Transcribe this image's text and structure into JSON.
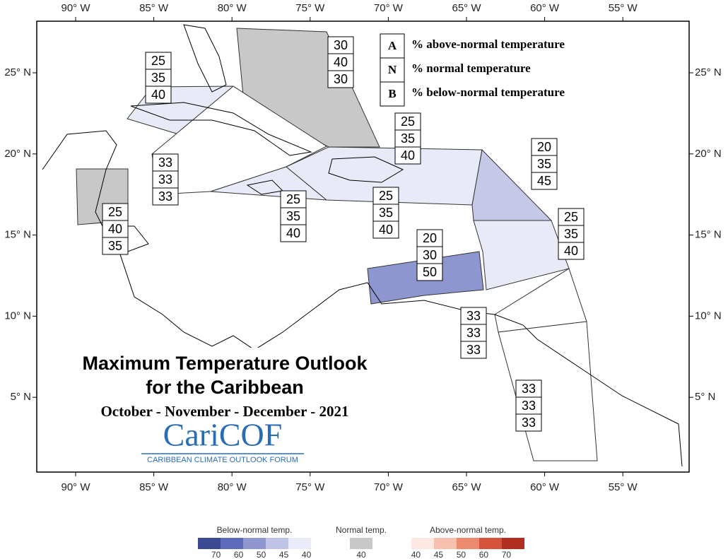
{
  "map": {
    "title": "Maximum Temperature Outlook",
    "subtitle": "for the Caribbean",
    "period": "October - November - December - 2021",
    "logo": "CariCOF",
    "logo_caption": "CARIBBEAN CLIMATE OUTLOOK FORUM",
    "longitude_labels": [
      "90° W",
      "85° W",
      "80° W",
      "75° W",
      "70° W",
      "65° W",
      "60° W",
      "55° W"
    ],
    "latitude_labels": [
      "25° N",
      "20° N",
      "15° N",
      "10° N",
      "5° N"
    ],
    "key": [
      {
        "letter": "A",
        "text": "% above-normal temperature"
      },
      {
        "letter": "N",
        "text": "% normal temperature"
      },
      {
        "letter": "B",
        "text": "% below-normal temperature"
      }
    ],
    "regions": [
      {
        "A": 25,
        "N": 35,
        "B": 40,
        "color": "#e8ebf7"
      },
      {
        "A": 30,
        "N": 40,
        "B": 30,
        "color": "#c8c8c8"
      },
      {
        "A": 25,
        "N": 40,
        "B": 35,
        "color": "#c8c8c8"
      },
      {
        "A": 33,
        "N": 33,
        "B": 33,
        "color": "#ffffff"
      },
      {
        "A": 25,
        "N": 35,
        "B": 40,
        "color": "#e8ebf7"
      },
      {
        "A": 25,
        "N": 35,
        "B": 40,
        "color": "#e8ebf7"
      },
      {
        "A": 25,
        "N": 35,
        "B": 40,
        "color": "#e8ebf7"
      },
      {
        "A": 20,
        "N": 35,
        "B": 45,
        "color": "#c5c8e6"
      },
      {
        "A": 25,
        "N": 35,
        "B": 40,
        "color": "#e8ebf7"
      },
      {
        "A": 20,
        "N": 30,
        "B": 50,
        "color": "#8e96d0"
      },
      {
        "A": 33,
        "N": 33,
        "B": 33,
        "color": "#ffffff"
      },
      {
        "A": 33,
        "N": 33,
        "B": 33,
        "color": "#ffffff"
      }
    ],
    "colorbar": [
      {
        "label": "Below-normal temp.",
        "colors": [
          "#3c4a96",
          "#5e6abb",
          "#8f96d0",
          "#bfc3e6",
          "#e9ebf8"
        ],
        "ticks": [
          70,
          60,
          50,
          45,
          40
        ]
      },
      {
        "label": "Normal temp.",
        "colors": [
          "#c8c8c8"
        ],
        "ticks": [
          40
        ]
      },
      {
        "label": "Above-normal temp.",
        "colors": [
          "#fde9e2",
          "#f6bfae",
          "#ec8a70",
          "#d5533a",
          "#b12f20"
        ],
        "ticks": [
          40,
          45,
          50,
          60,
          70
        ]
      }
    ]
  }
}
